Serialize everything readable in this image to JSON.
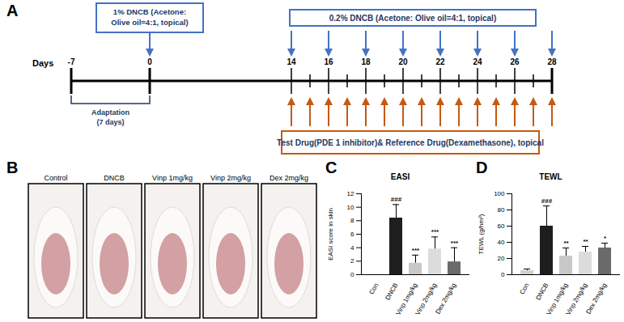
{
  "timeline": {
    "panel": "A",
    "axis_label": "Days",
    "labeled_days": [
      -7,
      0,
      14,
      16,
      18,
      20,
      22,
      24,
      26,
      28
    ],
    "adaptation": {
      "lines": [
        "Adaptation",
        "(7 days)"
      ],
      "from": -7,
      "to": 0
    },
    "induction": {
      "lines": [
        "1% DNCB (Acetone:",
        "Olive oil=4:1, topical)"
      ],
      "day": 0
    },
    "challenge": {
      "text": "0.2% DNCB (Acetone: Olive oil=4:1, topical)",
      "days": [
        14,
        16,
        18,
        20,
        22,
        24,
        26,
        28
      ]
    },
    "treatment": {
      "text": "Test Drug(PDE 1 inhibitor)& Reference Drug(Dexamethasone), topical",
      "days": [
        14,
        15,
        16,
        17,
        18,
        19,
        20,
        21,
        22,
        23,
        24,
        25,
        26,
        27,
        28
      ]
    }
  },
  "photos": {
    "panel": "B",
    "labels": [
      "Control",
      "DNCB",
      "Vinp 1mg/kg",
      "Vinp 2mg/kg",
      "Dex 2mg/kg"
    ]
  },
  "chart_data": [
    {
      "panel": "C",
      "type": "bar",
      "title": "EASI",
      "y_label": "EASI score in skin",
      "categories": [
        "Con",
        "DNCB",
        "Vinp 1mg/kg",
        "Vinp 2mg/kg",
        "Dex 2mg/kg"
      ],
      "values": [
        0,
        8.4,
        1.7,
        3.8,
        1.9
      ],
      "errors": [
        0,
        2.0,
        1.2,
        1.8,
        2.1
      ],
      "significance": [
        null,
        "###",
        "***",
        "***",
        "***"
      ],
      "colors": [
        "#d0d0d0",
        "#1e1e1e",
        "#c8c8c8",
        "#dcdcdc",
        "#6a6a6a"
      ],
      "ylim": [
        0,
        12
      ],
      "yticks": [
        0,
        2,
        4,
        6,
        8,
        10,
        12
      ]
    },
    {
      "panel": "D",
      "type": "bar",
      "title": "TEWL",
      "y_label": "TEWL (g/hm²)",
      "categories": [
        "Con",
        "DNCB",
        "Vinp 1mg/kg",
        "Vinp 2mg/kg",
        "Dex 2mg/kg"
      ],
      "values": [
        5,
        60,
        23,
        28,
        33
      ],
      "errors": [
        2,
        25,
        10,
        7,
        6
      ],
      "significance": [
        null,
        "###",
        "**",
        "**",
        "*"
      ],
      "colors": [
        "#d0d0d0",
        "#1e1e1e",
        "#c8c8c8",
        "#dcdcdc",
        "#6a6a6a"
      ],
      "ylim": [
        0,
        100
      ],
      "yticks": [
        0,
        20,
        40,
        60,
        80,
        100
      ]
    }
  ]
}
